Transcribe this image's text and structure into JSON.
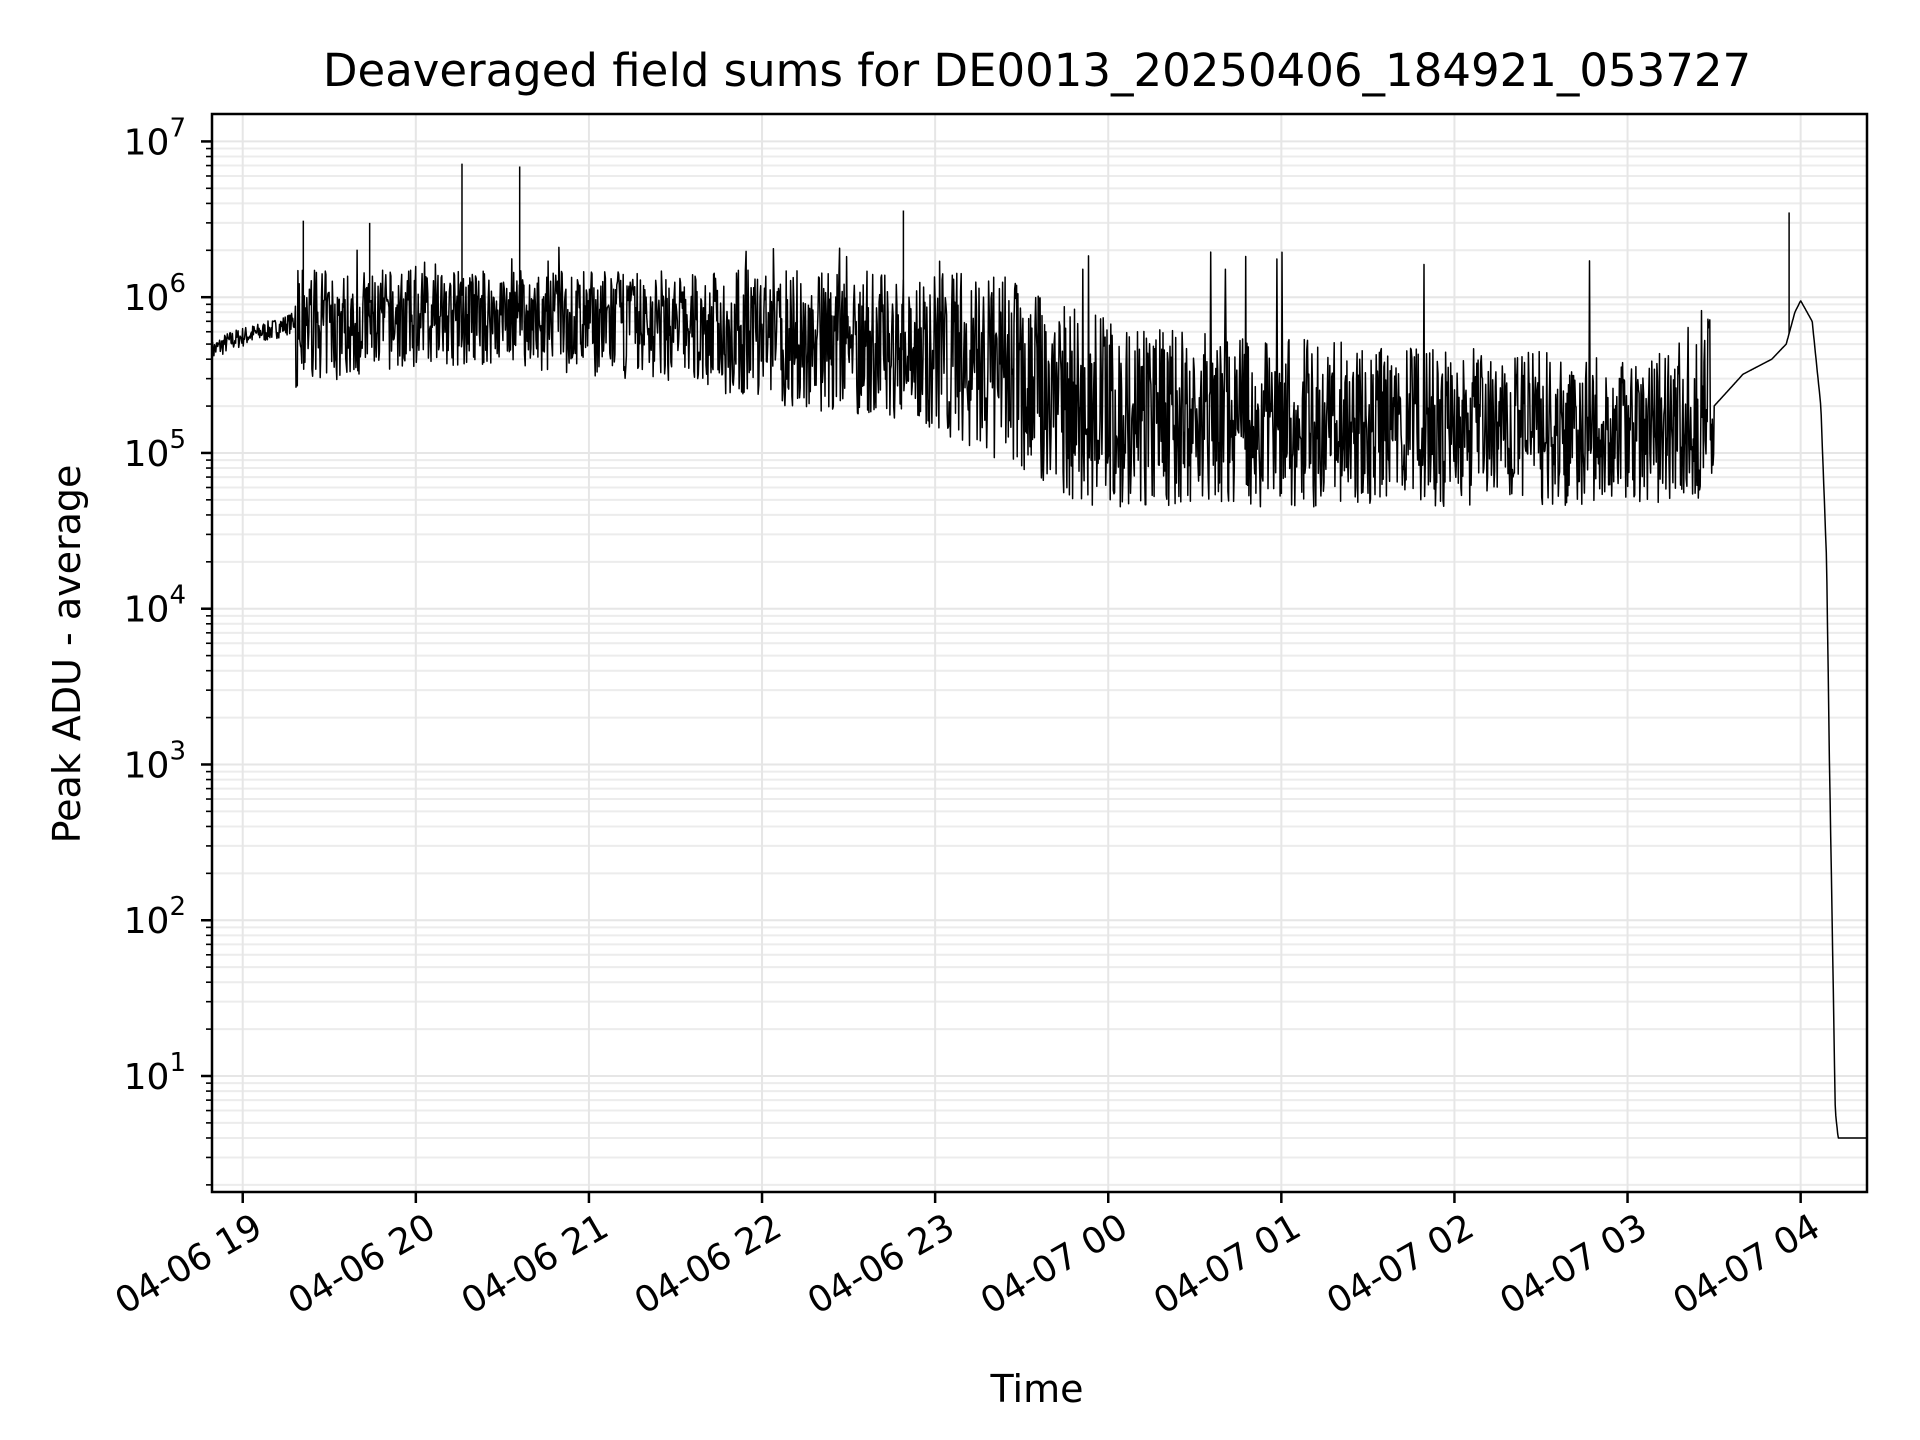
{
  "chart_data": {
    "type": "line",
    "title": "Deaveraged field sums for DE0013_20250406_184921_053727",
    "xlabel": "Time",
    "ylabel": "Peak ADU - average",
    "yscale": "log",
    "ylim": [
      1.8,
      15000000
    ],
    "xlim": [
      "2025-04-06 18:49:21",
      "2025-04-07 04:23:00"
    ],
    "grid": true,
    "grid_minor": true,
    "line_color": "#000000",
    "x_tick_labels": [
      "04-06 19",
      "04-06 20",
      "04-06 21",
      "04-06 22",
      "04-06 23",
      "04-07 00",
      "04-07 01",
      "04-07 02",
      "04-07 03",
      "04-07 04"
    ],
    "y_ticks": [
      {
        "value": 10,
        "base": "10",
        "exp": "1"
      },
      {
        "value": 100,
        "base": "10",
        "exp": "2"
      },
      {
        "value": 1000,
        "base": "10",
        "exp": "3"
      },
      {
        "value": 10000,
        "base": "10",
        "exp": "4"
      },
      {
        "value": 100000,
        "base": "10",
        "exp": "5"
      },
      {
        "value": 1000000,
        "base": "10",
        "exp": "6"
      },
      {
        "value": 10000000,
        "base": "10",
        "exp": "7"
      }
    ],
    "series": [
      {
        "x": [
          "2025-04-06 18:49",
          "2025-04-06 18:55",
          "2025-04-06 19:00",
          "2025-04-06 19:10",
          "2025-04-06 19:18",
          "2025-04-06 19:25",
          "2025-04-06 19:30",
          "2025-04-06 19:40",
          "2025-04-06 19:50",
          "2025-04-06 20:00",
          "2025-04-06 20:10",
          "2025-04-06 20:20",
          "2025-04-06 20:30",
          "2025-04-06 20:40",
          "2025-04-06 20:50",
          "2025-04-06 21:00",
          "2025-04-06 21:15",
          "2025-04-06 21:30",
          "2025-04-06 21:45",
          "2025-04-06 22:00",
          "2025-04-06 22:15",
          "2025-04-06 22:30",
          "2025-04-06 22:45",
          "2025-04-06 23:00",
          "2025-04-06 23:15",
          "2025-04-06 23:30",
          "2025-04-06 23:45",
          "2025-04-07 00:00",
          "2025-04-07 00:15",
          "2025-04-07 00:30",
          "2025-04-07 00:45",
          "2025-04-07 01:00",
          "2025-04-07 01:15",
          "2025-04-07 01:30",
          "2025-04-07 01:45",
          "2025-04-07 02:00",
          "2025-04-07 02:15",
          "2025-04-07 02:30",
          "2025-04-07 02:45",
          "2025-04-07 03:00",
          "2025-04-07 03:10",
          "2025-04-07 03:20",
          "2025-04-07 03:30",
          "2025-04-07 03:40",
          "2025-04-07 03:50",
          "2025-04-07 03:55",
          "2025-04-07 03:58",
          "2025-04-07 04:00",
          "2025-04-07 04:04",
          "2025-04-07 04:07",
          "2025-04-07 04:09",
          "2025-04-07 04:10",
          "2025-04-07 04:11",
          "2025-04-07 04:12",
          "2025-04-07 04:13",
          "2025-04-07 04:23"
        ],
        "y": [
          450000,
          520000,
          560000,
          620000,
          700000,
          900000,
          800000,
          900000,
          950000,
          1000000,
          1050000,
          1000000,
          1100000,
          1000000,
          900000,
          900000,
          850000,
          800000,
          700000,
          600000,
          550000,
          500000,
          480000,
          400000,
          300000,
          200000,
          150000,
          120000,
          110000,
          100000,
          95000,
          90000,
          90000,
          85000,
          80000,
          80000,
          75000,
          75000,
          70000,
          70000,
          80000,
          100000,
          200000,
          320000,
          400000,
          500000,
          800000,
          950000,
          700000,
          200000,
          20000,
          1000,
          80,
          6,
          4,
          4
        ]
      }
    ]
  }
}
